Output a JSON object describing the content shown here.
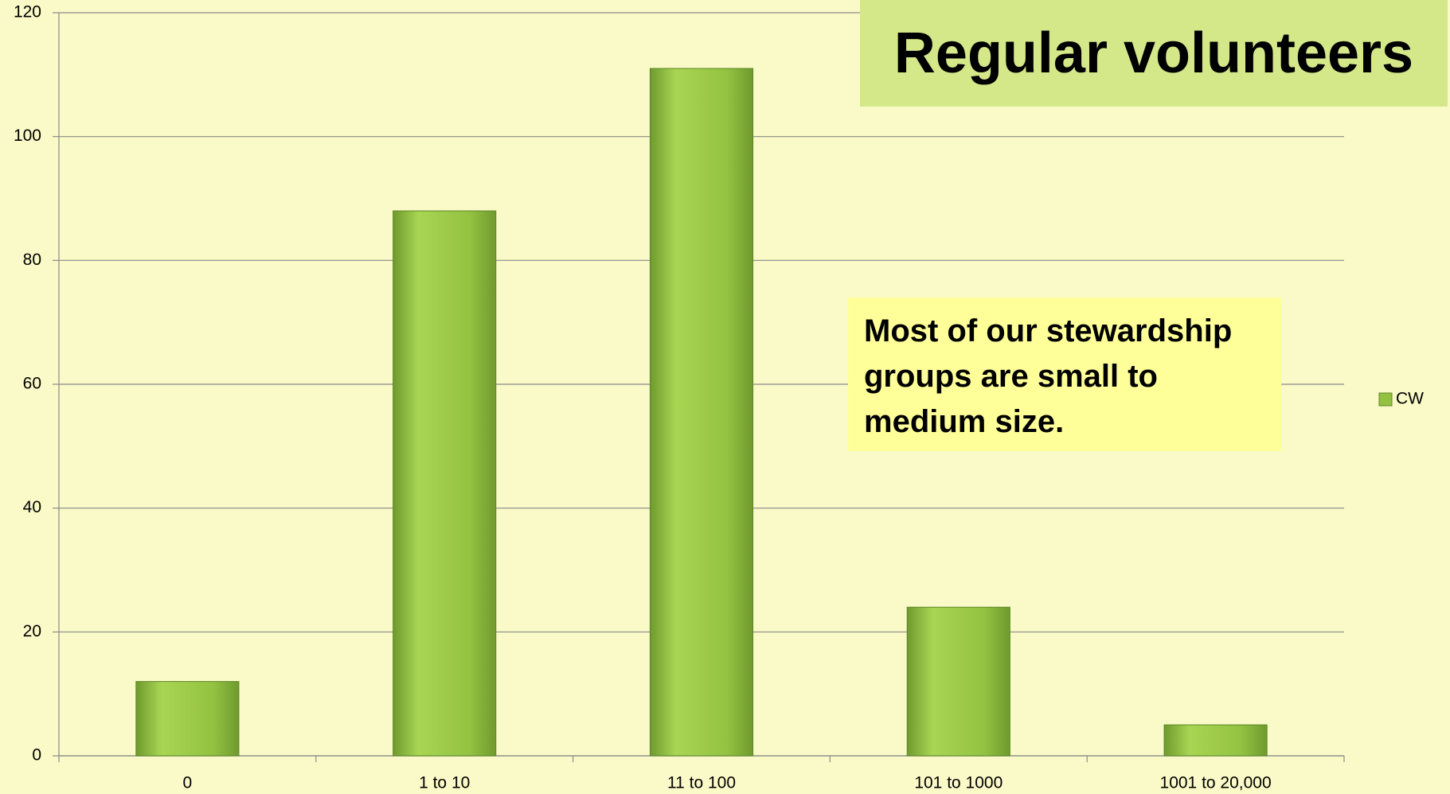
{
  "chart_data": {
    "type": "bar",
    "title": "Regular volunteers",
    "annotation": "Most of our stewardship groups are small to medium size.",
    "categories": [
      "0",
      "1 to 10",
      "11 to 100",
      "101 to 1000",
      "1001 to 20,000"
    ],
    "series": [
      {
        "name": "CW",
        "color": "#93c241",
        "values": [
          12,
          88,
          111,
          24,
          5
        ]
      }
    ],
    "ylim": [
      0,
      120
    ],
    "yticks": [
      0,
      20,
      40,
      60,
      80,
      100,
      120
    ],
    "grid": true,
    "legend": "right"
  }
}
